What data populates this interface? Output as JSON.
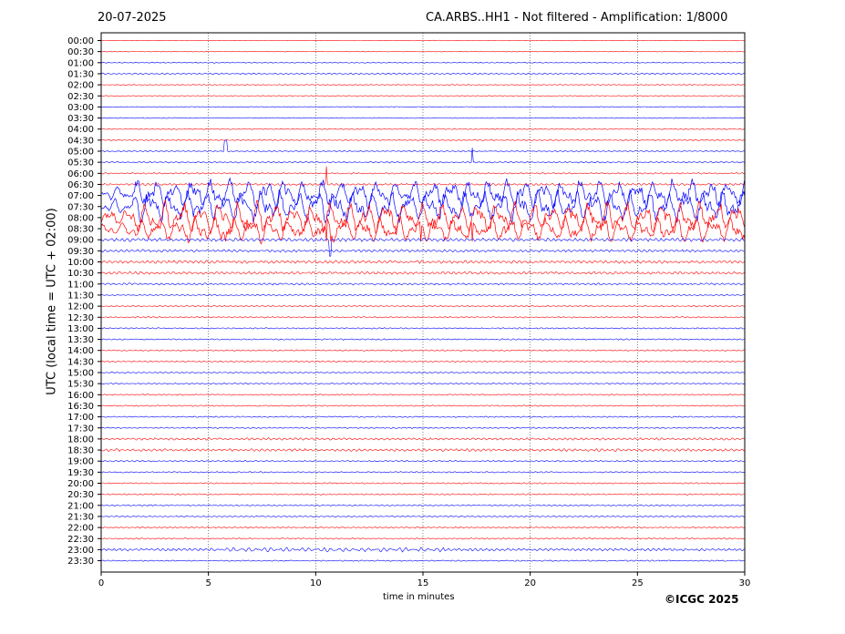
{
  "header": {
    "date": "20-07-2025",
    "title": "CA.ARBS..HH1 - Not filtered - Amplification: 1/8000"
  },
  "footer": {
    "credit": "©ICGC 2025"
  },
  "chart_data": {
    "type": "line",
    "xlabel": "time in minutes",
    "ylabel": "UTC (local time = UTC + 02:00)",
    "xlim": [
      0,
      30
    ],
    "x_ticks": [
      0,
      5,
      10,
      15,
      20,
      25,
      30
    ],
    "x_tick_labels": [
      "0",
      "5",
      "10",
      "15",
      "20",
      "25",
      "30"
    ],
    "grid": "vertical dotted lines at x ticks",
    "colors": {
      "red": "#ff0000",
      "blue": "#0000ff"
    },
    "row_colors": "alternating red, red, blue, blue repeating",
    "rows": [
      "00:00",
      "00:30",
      "01:00",
      "01:30",
      "02:00",
      "02:30",
      "03:00",
      "03:30",
      "04:00",
      "04:30",
      "05:00",
      "05:30",
      "06:00",
      "06:30",
      "07:00",
      "07:30",
      "08:00",
      "08:30",
      "09:00",
      "09:30",
      "10:00",
      "10:30",
      "11:00",
      "11:30",
      "12:00",
      "12:30",
      "13:00",
      "13:30",
      "14:00",
      "14:30",
      "15:00",
      "15:30",
      "16:00",
      "16:30",
      "17:00",
      "17:30",
      "18:00",
      "18:30",
      "19:00",
      "19:30",
      "20:00",
      "20:30",
      "21:00",
      "21:30",
      "22:00",
      "22:30",
      "23:00",
      "23:30"
    ],
    "notable_activity": {
      "high_amplitude_rows": [
        "07:00",
        "07:30",
        "08:00",
        "08:30"
      ],
      "spikes_minutes": [
        5.8,
        10.5,
        10.7,
        14.9,
        17.3
      ]
    }
  }
}
